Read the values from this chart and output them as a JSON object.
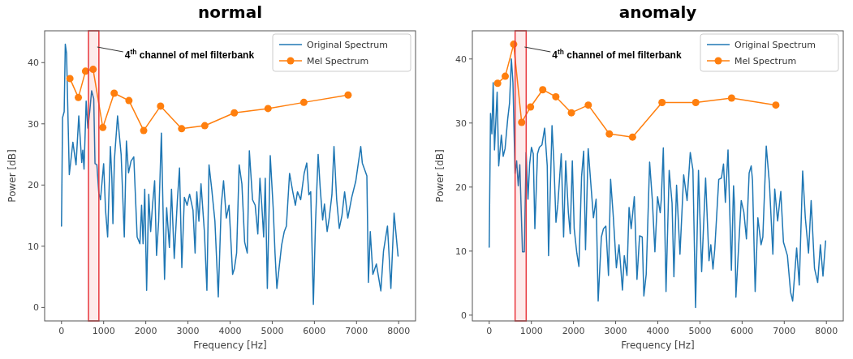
{
  "chart_data": [
    {
      "type": "line",
      "title": "normal",
      "xlabel": "Frequency [Hz]",
      "ylabel": "Power [dB]",
      "xlim": [
        -400,
        8400
      ],
      "ylim": [
        -2.2,
        45.2
      ],
      "xticks": [
        0,
        1000,
        2000,
        3000,
        4000,
        5000,
        6000,
        7000,
        8000
      ],
      "yticks": [
        0,
        10,
        20,
        30,
        40
      ],
      "legend": "top right",
      "grid": false,
      "bands": [
        {
          "axis": "x",
          "from": 640,
          "to": 887,
          "color": "#e8373d"
        }
      ],
      "annotations": [
        "4$^{th}$ channel of mel filterbank"
      ],
      "series": [
        {
          "name": "Original Spectrum",
          "color": "#1f77b4",
          "marker": "none",
          "x": [
            0,
            25,
            64,
            90,
            120,
            185,
            270,
            345,
            410,
            480,
            505,
            535,
            585,
            625,
            670,
            715,
            765,
            795,
            840,
            885,
            925,
            1000,
            1045,
            1095,
            1160,
            1195,
            1220,
            1255,
            1330,
            1415,
            1490,
            1540,
            1590,
            1650,
            1715,
            1795,
            1860,
            1900,
            1935,
            1975,
            2020,
            2070,
            2115,
            2160,
            2210,
            2255,
            2305,
            2370,
            2445,
            2495,
            2560,
            2610,
            2675,
            2750,
            2800,
            2855,
            2915,
            2980,
            3040,
            3120,
            3170,
            3210,
            3260,
            3310,
            3390,
            3450,
            3500,
            3565,
            3640,
            3720,
            3790,
            3845,
            3910,
            3975,
            4060,
            4100,
            4155,
            4215,
            4280,
            4345,
            4407,
            4457,
            4533,
            4595,
            4658,
            4708,
            4752,
            4797,
            4834,
            4884,
            4953,
            5022,
            5066,
            5110,
            5160,
            5223,
            5286,
            5336,
            5411,
            5487,
            5549,
            5599,
            5675,
            5757,
            5819,
            5870,
            5913,
            5976,
            6026,
            6089,
            6139,
            6196,
            6239,
            6303,
            6352,
            6416,
            6465,
            6529,
            6591,
            6654,
            6717,
            6793,
            6887,
            6981,
            7043,
            7100,
            7137,
            7245,
            7282,
            7326,
            7388,
            7471,
            7577,
            7640,
            7734,
            7815,
            7891,
            7985
          ],
          "values": [
            13.3,
            31,
            32,
            43,
            41.5,
            21.7,
            27,
            23.3,
            31.3,
            23.7,
            25.7,
            22.6,
            33.7,
            29.3,
            32,
            35.4,
            34.1,
            23.5,
            23.3,
            18.7,
            17.6,
            23.5,
            15.9,
            11.5,
            26.3,
            21.1,
            13.7,
            24.1,
            31.3,
            25,
            11.5,
            27.2,
            22,
            23.9,
            24.6,
            11.5,
            10.4,
            16.7,
            10.4,
            19.3,
            2.8,
            18.5,
            12.4,
            16.7,
            20.7,
            8.5,
            14.1,
            28.5,
            4.6,
            16.3,
            9.8,
            19.3,
            8,
            17.6,
            22.8,
            6.5,
            18,
            16.7,
            18.5,
            15.9,
            8.9,
            18.9,
            14.1,
            20.2,
            12.4,
            2.8,
            23.3,
            19.3,
            14.1,
            1.7,
            16.7,
            20.7,
            14.6,
            16.7,
            5.4,
            6.3,
            8.9,
            23.3,
            20.2,
            10.7,
            8.9,
            25.6,
            17.6,
            16.7,
            12,
            21.1,
            16.7,
            11.5,
            21.1,
            3.1,
            24.8,
            16.3,
            8.9,
            3.1,
            6.3,
            10.2,
            12.4,
            13.3,
            21.9,
            18.9,
            16.7,
            18.9,
            17.6,
            21.9,
            23.6,
            18.4,
            18.9,
            0.5,
            13.7,
            25,
            19.4,
            14.3,
            16.9,
            12.4,
            14.6,
            18.4,
            26.3,
            17.6,
            12.9,
            15,
            18.9,
            14.6,
            18,
            20.6,
            23.6,
            26.3,
            23.6,
            21.5,
            4.1,
            12.4,
            5.4,
            7.1,
            2.7,
            9.2,
            13.3,
            3.1,
            15.4,
            8.4
          ]
        },
        {
          "name": "Mel Spectrum",
          "color": "#ff7f0e",
          "marker": "circle",
          "x": [
            200,
            400,
            570,
            750,
            980,
            1250,
            1600,
            1950,
            2350,
            2850,
            3400,
            4100,
            4900,
            5750,
            6800
          ],
          "values": [
            37.4,
            34.3,
            38.6,
            38.9,
            29.4,
            35,
            33.8,
            28.9,
            32.9,
            29.2,
            29.7,
            31.8,
            32.5,
            33.5,
            34.7
          ]
        }
      ]
    },
    {
      "type": "line",
      "title": "anomaly",
      "xlabel": "Frequency [Hz]",
      "ylabel": "Power [dB]",
      "xlim": [
        -400,
        8400
      ],
      "ylim": [
        -0.9,
        44.4
      ],
      "xticks": [
        0,
        1000,
        2000,
        3000,
        4000,
        5000,
        6000,
        7000,
        8000
      ],
      "yticks": [
        0,
        10,
        20,
        30,
        40
      ],
      "legend": "top right",
      "grid": false,
      "bands": [
        {
          "axis": "x",
          "from": 614,
          "to": 877,
          "color": "#e8373d"
        }
      ],
      "annotations": [
        "4$^{th}$ channel of mel filterbank"
      ],
      "series": [
        {
          "name": "Original Spectrum",
          "color": "#1f77b4",
          "marker": "none",
          "x": [
            0,
            31,
            63,
            94,
            125,
            188,
            225,
            288,
            332,
            376,
            438,
            482,
            526,
            563,
            613,
            651,
            689,
            726,
            789,
            833,
            876,
            920,
            958,
            1002,
            1045,
            1083,
            1146,
            1189,
            1252,
            1315,
            1377,
            1408,
            1490,
            1534,
            1584,
            1628,
            1709,
            1765,
            1815,
            1878,
            1922,
            1972,
            2016,
            2078,
            2128,
            2191,
            2241,
            2285,
            2348,
            2410,
            2473,
            2536,
            2585,
            2661,
            2711,
            2767,
            2830,
            2880,
            2942,
            3017,
            3080,
            3161,
            3205,
            3268,
            3318,
            3368,
            3443,
            3506,
            3568,
            3631,
            3669,
            3725,
            3806,
            3869,
            3931,
            3994,
            4057,
            4083,
            4131,
            4195,
            4270,
            4338,
            4382,
            4445,
            4526,
            4614,
            4695,
            4770,
            4833,
            4896,
            4965,
            5040,
            5134,
            5215,
            5258,
            5309,
            5352,
            5446,
            5510,
            5559,
            5603,
            5666,
            5746,
            5797,
            5822,
            5853,
            5916,
            5979,
            6041,
            6103,
            6167,
            6216,
            6247,
            6310,
            6374,
            6449,
            6492,
            6573,
            6648,
            6730,
            6774,
            6843,
            6918,
            6981,
            7075,
            7150,
            7200,
            7294,
            7356,
            7437,
            7500,
            7576,
            7638,
            7718,
            7793,
            7857,
            7919,
            7981
          ],
          "values": [
            10.6,
            31.5,
            28.3,
            36.3,
            25.8,
            34.8,
            23.3,
            28.1,
            24.8,
            26,
            30.6,
            33.1,
            40,
            36.3,
            22.1,
            24.1,
            20.2,
            23.5,
            9.9,
            9.9,
            25.4,
            18.1,
            23.5,
            26.2,
            25.2,
            13.5,
            25.2,
            26.2,
            26.6,
            29.2,
            23.3,
            9.3,
            29.6,
            23.9,
            14.5,
            17.3,
            25.2,
            12.2,
            24.1,
            16,
            12.7,
            24.1,
            13.5,
            9.7,
            7.6,
            21.6,
            25.6,
            10.2,
            26,
            20.6,
            15.2,
            18.1,
            2.2,
            12.2,
            13.5,
            13.9,
            6.2,
            21.2,
            15.6,
            7.4,
            11,
            3.9,
            9.3,
            6.2,
            16.8,
            13.5,
            18.5,
            5.6,
            12.4,
            12.2,
            3,
            6.4,
            23.9,
            18.1,
            9.9,
            18.5,
            16,
            18.1,
            26.1,
            3.7,
            22.6,
            17.5,
            6,
            20.3,
            9.5,
            21.9,
            17.9,
            25.4,
            22.7,
            1.2,
            22.6,
            6.8,
            21.4,
            8.5,
            11,
            7.2,
            10.4,
            21.2,
            21.4,
            23.6,
            17.6,
            25.8,
            7,
            20.2,
            16.8,
            2.8,
            10.5,
            17.9,
            16.1,
            11.9,
            22.2,
            23.3,
            21,
            3.7,
            15.2,
            11,
            12.2,
            26.4,
            20.6,
            9.5,
            19.7,
            14.7,
            19.3,
            11.4,
            9.3,
            3.6,
            2.2,
            10.5,
            4.7,
            22.5,
            15.2,
            9.7,
            17.9,
            7.3,
            5.1,
            11,
            6.1,
            11.6
          ]
        },
        {
          "name": "Mel Spectrum",
          "color": "#ff7f0e",
          "marker": "circle",
          "x": [
            200,
            380,
            580,
            770,
            980,
            1270,
            1580,
            1950,
            2350,
            2850,
            3400,
            4100,
            4900,
            5750,
            6800
          ],
          "values": [
            36.2,
            37.3,
            42.3,
            30.1,
            32.5,
            35.2,
            34.1,
            31.6,
            32.8,
            28.3,
            27.8,
            33.2,
            33.2,
            33.9,
            32.8
          ]
        }
      ]
    }
  ]
}
